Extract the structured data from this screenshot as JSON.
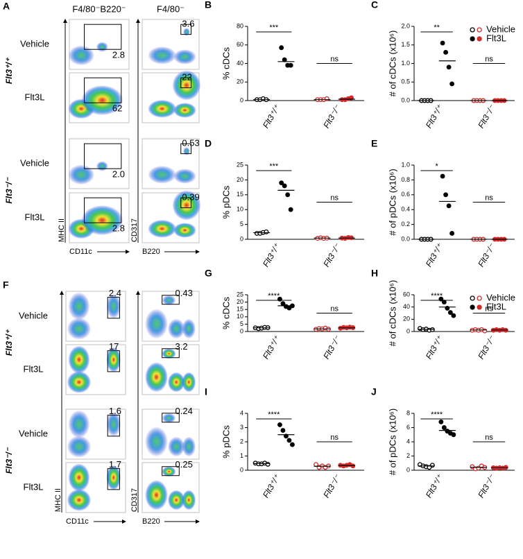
{
  "flow": [
    {
      "panel": "A",
      "col_headers": [
        "F4/80⁻B220⁻",
        "F4/80⁻"
      ],
      "genotypes": [
        "Flt3⁺/⁺",
        "Flt3⁻/⁻"
      ],
      "rows": [
        "Vehicle",
        "Flt3L",
        "Vehicle",
        "Flt3L"
      ],
      "gate_values": [
        [
          "2.8",
          "3.6"
        ],
        [
          "62",
          "22"
        ],
        [
          "2.0",
          "0.53"
        ],
        [
          "2.8",
          "0.39"
        ]
      ],
      "x_labels": [
        "CD11c",
        "B220"
      ],
      "y_labels": [
        "MHC II",
        "CD317"
      ]
    },
    {
      "panel": "F",
      "genotypes": [
        "Flt3⁺/⁺",
        "Flt3⁻/⁻"
      ],
      "rows": [
        "Vehicle",
        "Flt3L",
        "Vehicle",
        "Flt3L"
      ],
      "gate_values": [
        [
          "2.4",
          "0.43"
        ],
        [
          "17",
          "3.2"
        ],
        [
          "1.6",
          "0.24"
        ],
        [
          "1.7",
          "0.25"
        ]
      ],
      "x_labels": [
        "CD11c",
        "B220"
      ],
      "y_labels": [
        "MHC II",
        "CD317"
      ]
    }
  ],
  "chart_data": [
    {
      "type": "dot",
      "panel": "B",
      "ylabel": "% cDCs",
      "ylim": [
        0,
        80
      ],
      "yticks": [
        0,
        20,
        40,
        60,
        80
      ],
      "categories": [
        "Flt3⁺/⁺",
        "Flt3⁻/⁻"
      ],
      "colors": [
        "#000000",
        "#d42a2a"
      ],
      "annotations": [
        "***",
        "ns"
      ],
      "series": [
        {
          "name": "Vehicle",
          "marker": "open",
          "values": [
            [
              1,
              1,
              2,
              1
            ],
            [
              1,
              1,
              1,
              2
            ]
          ],
          "means": [
            1,
            1
          ]
        },
        {
          "name": "Flt3L",
          "marker": "filled",
          "values": [
            [
              57,
              44,
              38,
              38
            ],
            [
              1,
              1,
              2,
              3
            ]
          ],
          "means": [
            42,
            1.5
          ]
        }
      ]
    },
    {
      "type": "dot",
      "panel": "C",
      "ylabel": "# of cDCs (x10⁶)",
      "ylim": [
        0,
        2
      ],
      "yticks": [
        {
          "value": 0,
          "label": "0.0"
        },
        0.5,
        {
          "value": 1,
          "label": "1.0"
        },
        1.5,
        {
          "value": 2,
          "label": "2.0"
        }
      ],
      "categories": [
        "Flt3⁺/⁺",
        "Flt3⁻/⁻"
      ],
      "colors": [
        "#000000",
        "#d42a2a"
      ],
      "annotations": [
        "**",
        "ns"
      ],
      "legend": true,
      "series": [
        {
          "name": "Vehicle",
          "marker": "open",
          "values": [
            [
              0,
              0,
              0,
              0
            ],
            [
              0,
              0,
              0,
              0
            ]
          ],
          "means": [
            0,
            0
          ]
        },
        {
          "name": "Flt3L",
          "marker": "filled",
          "values": [
            [
              1.55,
              1.3,
              0.9,
              0.45
            ],
            [
              0,
              0,
              0,
              0
            ]
          ],
          "means": [
            1.07,
            0
          ]
        }
      ]
    },
    {
      "type": "dot",
      "panel": "D",
      "ylabel": "% pDCs",
      "ylim": [
        0,
        25
      ],
      "yticks": [
        0,
        5,
        10,
        15,
        20,
        25
      ],
      "categories": [
        "Flt3⁺/⁺",
        "Flt3⁻/⁻"
      ],
      "colors": [
        "#000000",
        "#d42a2a"
      ],
      "annotations": [
        "***",
        "ns"
      ],
      "series": [
        {
          "name": "Vehicle",
          "marker": "open",
          "values": [
            [
              2,
              2,
              2.3,
              2.5
            ],
            [
              0.3,
              0.5,
              0.3,
              0.4
            ]
          ],
          "means": [
            2.2,
            0.4
          ]
        },
        {
          "name": "Flt3L",
          "marker": "filled",
          "values": [
            [
              19,
              18,
              15,
              10
            ],
            [
              0.4,
              0.3,
              0.6,
              0.5
            ]
          ],
          "means": [
            16.5,
            0.4
          ]
        }
      ]
    },
    {
      "type": "dot",
      "panel": "E",
      "ylabel": "# of pDCs (x10⁶)",
      "ylim": [
        0,
        1
      ],
      "yticks": [
        {
          "value": 0,
          "label": "0.0"
        },
        0.2,
        0.4,
        0.6,
        0.8,
        {
          "value": 1,
          "label": "1.0"
        }
      ],
      "categories": [
        "Flt3⁺/⁺",
        "Flt3⁻/⁻"
      ],
      "colors": [
        "#000000",
        "#d42a2a"
      ],
      "annotations": [
        "*",
        "ns"
      ],
      "series": [
        {
          "name": "Vehicle",
          "marker": "open",
          "values": [
            [
              0,
              0,
              0,
              0
            ],
            [
              0,
              0,
              0,
              0
            ]
          ],
          "means": [
            0,
            0
          ]
        },
        {
          "name": "Flt3L",
          "marker": "filled",
          "values": [
            [
              0.85,
              0.6,
              0.45,
              0.08
            ],
            [
              0,
              0,
              0,
              0
            ]
          ],
          "means": [
            0.51,
            0
          ]
        }
      ]
    },
    {
      "type": "dot",
      "panel": "G",
      "ylabel": "% cDCs",
      "ylim": [
        0,
        25
      ],
      "yticks": [
        0,
        5,
        10,
        15,
        20,
        25
      ],
      "categories": [
        "Flt3⁺/⁺",
        "Flt3⁻/⁻"
      ],
      "colors": [
        "#000000",
        "#d42a2a"
      ],
      "annotations": [
        "****",
        "ns"
      ],
      "series": [
        {
          "name": "Vehicle",
          "marker": "open",
          "values": [
            [
              2.5,
              2,
              2.3,
              2.8,
              2.6
            ],
            [
              1.5,
              2,
              1.8,
              2.3,
              1.6
            ]
          ],
          "means": [
            2.5,
            1.8
          ]
        },
        {
          "name": "Flt3L",
          "marker": "filled",
          "values": [
            [
              22,
              19,
              17,
              16,
              17.5
            ],
            [
              2.2,
              2.8,
              2.5,
              3,
              2.6
            ]
          ],
          "means": [
            17.5,
            2.5
          ]
        }
      ]
    },
    {
      "type": "dot",
      "panel": "H",
      "ylabel": "# of cDCs (x10⁶)",
      "ylim": [
        0,
        60
      ],
      "yticks": [
        0,
        20,
        40,
        60
      ],
      "categories": [
        "Flt3⁺/⁺",
        "Flt3⁻/⁻"
      ],
      "colors": [
        "#000000",
        "#d42a2a"
      ],
      "annotations": [
        "****",
        "ns"
      ],
      "legend": true,
      "series": [
        {
          "name": "Vehicle",
          "marker": "open",
          "values": [
            [
              5,
              3,
              4,
              2,
              3
            ],
            [
              2,
              3,
              2,
              3,
              1
            ]
          ],
          "means": [
            3.5,
            2.5
          ]
        },
        {
          "name": "Flt3L",
          "marker": "filled",
          "values": [
            [
              53,
              48,
              38,
              31,
              26
            ],
            [
              2,
              3,
              2,
              3,
              2
            ]
          ],
          "means": [
            40,
            2.5
          ]
        }
      ]
    },
    {
      "type": "dot",
      "panel": "I",
      "ylabel": "% pDCs",
      "ylim": [
        0,
        4
      ],
      "yticks": [
        0,
        1,
        2,
        3,
        4
      ],
      "categories": [
        "Flt3⁺/⁺",
        "Flt3⁻/⁻"
      ],
      "colors": [
        "#000000",
        "#d42a2a"
      ],
      "annotations": [
        "****",
        "ns"
      ],
      "series": [
        {
          "name": "Vehicle",
          "marker": "open",
          "values": [
            [
              0.5,
              0.45,
              0.45,
              0.5,
              0.42
            ],
            [
              0.4,
              0.2,
              0.3,
              0.2,
              0.3
            ]
          ],
          "means": [
            0.47,
            0.28
          ]
        },
        {
          "name": "Flt3L",
          "marker": "filled",
          "values": [
            [
              3.2,
              2.8,
              2.4,
              2.1,
              1.8
            ],
            [
              0.35,
              0.3,
              0.35,
              0.4,
              0.3
            ]
          ],
          "means": [
            2.5,
            0.33
          ]
        }
      ]
    },
    {
      "type": "dot",
      "panel": "J",
      "ylabel": "# of pDCs (x10⁶)",
      "ylim": [
        0,
        8
      ],
      "yticks": [
        0,
        2,
        4,
        6,
        8
      ],
      "categories": [
        "Flt3⁺/⁺",
        "Flt3⁻/⁻"
      ],
      "colors": [
        "#000000",
        "#d42a2a"
      ],
      "annotations": [
        "****",
        "ns"
      ],
      "series": [
        {
          "name": "Vehicle",
          "marker": "open",
          "values": [
            [
              0.8,
              0.6,
              0.5,
              0.4,
              0.7
            ],
            [
              0.5,
              0.2,
              0.3,
              0.6,
              0.4
            ]
          ],
          "means": [
            0.6,
            0.4
          ]
        },
        {
          "name": "Flt3L",
          "marker": "filled",
          "values": [
            [
              6.8,
              6,
              5.5,
              5.2,
              5
            ],
            [
              0.35,
              0.3,
              0.35,
              0.3,
              0.4
            ]
          ],
          "means": [
            5.6,
            0.35
          ]
        }
      ]
    }
  ]
}
